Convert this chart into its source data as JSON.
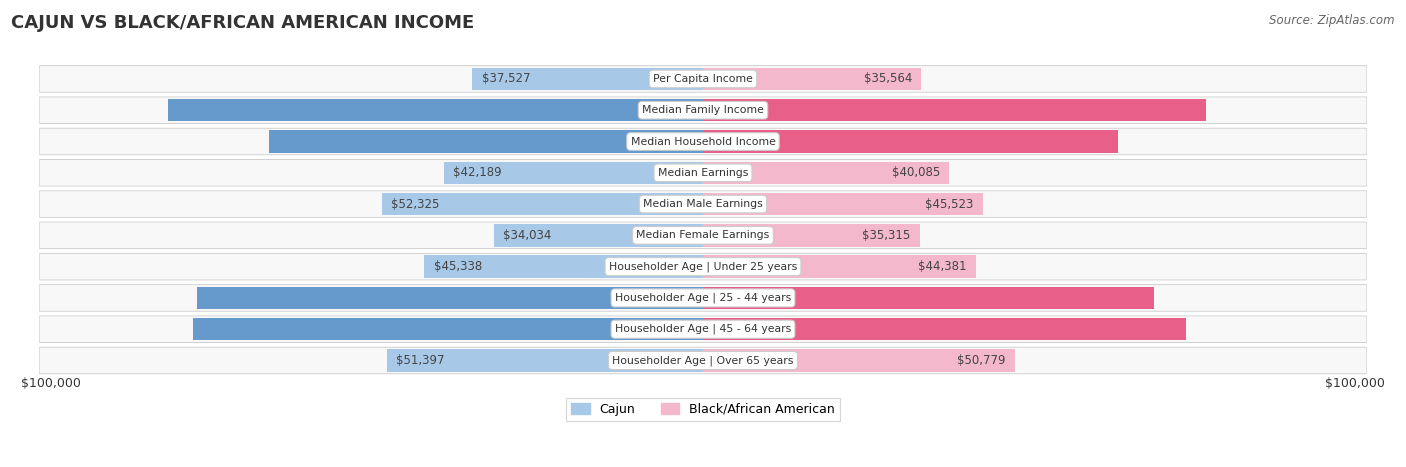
{
  "title": "CAJUN VS BLACK/AFRICAN AMERICAN INCOME",
  "source": "Source: ZipAtlas.com",
  "categories": [
    "Per Capita Income",
    "Median Family Income",
    "Median Household Income",
    "Median Earnings",
    "Median Male Earnings",
    "Median Female Earnings",
    "Householder Age | Under 25 years",
    "Householder Age | 25 - 44 years",
    "Householder Age | 45 - 64 years",
    "Householder Age | Over 65 years"
  ],
  "cajun_values": [
    37527,
    87157,
    70605,
    42189,
    52325,
    34034,
    45338,
    82393,
    83015,
    51397
  ],
  "black_values": [
    35564,
    81912,
    67573,
    40085,
    45523,
    35315,
    44381,
    73370,
    78556,
    50779
  ],
  "cajun_color_light": "#a8c8e8",
  "cajun_color_dark": "#6699cc",
  "black_color_light": "#f4b8cc",
  "black_color_dark": "#e8608a",
  "cajun_dark_threshold": 65000,
  "black_dark_threshold": 65000,
  "max_value": 100000,
  "row_bg_color": "#ebebeb",
  "row_bg_inner": "#f8f8f8",
  "xlabel_left": "$100,000",
  "xlabel_right": "$100,000",
  "legend_cajun": "Cajun",
  "legend_black": "Black/African American"
}
